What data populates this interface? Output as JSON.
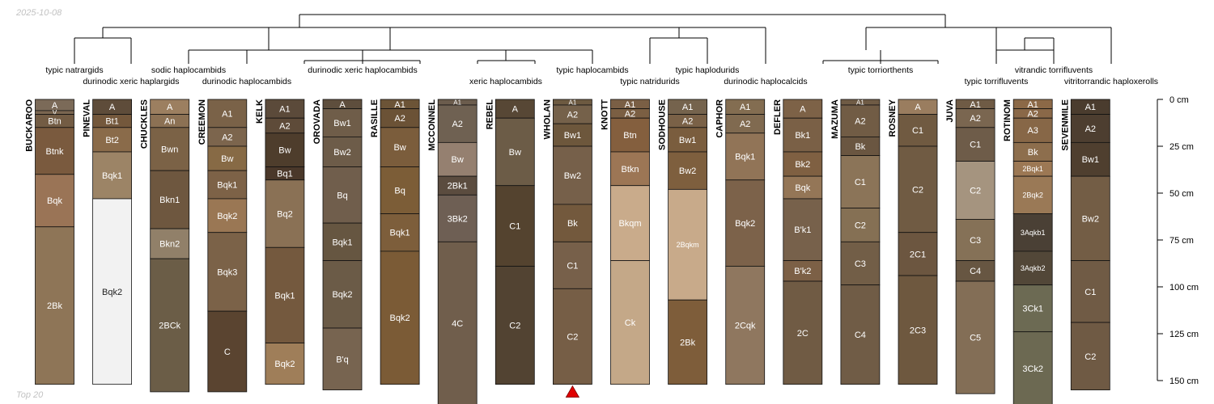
{
  "meta": {
    "date": "2025-10-08",
    "footer": "Top 20"
  },
  "depth_axis": {
    "ticks": [
      0,
      25,
      50,
      75,
      100,
      125,
      150
    ],
    "unit": "cm"
  },
  "dendrogram": {
    "groups": [
      {
        "name": "typic natrargids",
        "profiles": [
          0
        ]
      },
      {
        "name": "durinodic xeric haplargids",
        "profiles": [
          1
        ]
      },
      {
        "name": "sodic haplocambids",
        "profiles": [
          2
        ]
      },
      {
        "name": "durinodic haplocambids",
        "profiles": [
          3
        ]
      },
      {
        "name": "durinodic xeric haplocambids",
        "profiles": [
          4,
          5,
          6
        ]
      },
      {
        "name": "xeric haplocambids",
        "profiles": [
          7,
          8
        ]
      },
      {
        "name": "typic haplocambids",
        "profiles": [
          9
        ]
      },
      {
        "name": "typic natridurids",
        "profiles": [
          10
        ]
      },
      {
        "name": "typic haplodurids",
        "profiles": [
          11
        ]
      },
      {
        "name": "durinodic haplocalcids",
        "profiles": [
          12
        ]
      },
      {
        "name": "typic torriorthents",
        "profiles": [
          13,
          14,
          15
        ]
      },
      {
        "name": "typic torrifluvents",
        "profiles": [
          16
        ]
      },
      {
        "name": "vitrandic torrifluvents",
        "profiles": [
          17
        ]
      },
      {
        "name": "vitritorrandic haploxerolls",
        "profiles": [
          18
        ]
      }
    ]
  },
  "profiles": [
    {
      "name": "BUCKAROO",
      "horizons": [
        {
          "name": "A",
          "top": 0,
          "bottom": 6,
          "color": "#7b6a58"
        },
        {
          "name": "V",
          "top": 6,
          "bottom": 8,
          "color": "#7a6650"
        },
        {
          "name": "Btn",
          "top": 8,
          "bottom": 15,
          "color": "#735c44"
        },
        {
          "name": "Btnk",
          "top": 15,
          "bottom": 40,
          "color": "#7a5a3e"
        },
        {
          "name": "Bqk",
          "top": 40,
          "bottom": 68,
          "color": "#9a7456"
        },
        {
          "name": "2Bk",
          "top": 68,
          "bottom": 152,
          "color": "#8e7557"
        }
      ]
    },
    {
      "name": "PINEVAL",
      "horizons": [
        {
          "name": "A",
          "top": 0,
          "bottom": 8,
          "color": "#5e4c3a"
        },
        {
          "name": "Bt1",
          "top": 8,
          "bottom": 15,
          "color": "#74583c"
        },
        {
          "name": "Bt2",
          "top": 15,
          "bottom": 28,
          "color": "#8a6b4a"
        },
        {
          "name": "Bqk1",
          "top": 28,
          "bottom": 53,
          "color": "#9c8466"
        },
        {
          "name": "Bqk2",
          "top": 53,
          "bottom": 152,
          "color": "#f2f2f2"
        }
      ]
    },
    {
      "name": "CHUCKLES",
      "horizons": [
        {
          "name": "A",
          "top": 0,
          "bottom": 8,
          "color": "#9c7f60"
        },
        {
          "name": "An",
          "top": 8,
          "bottom": 15,
          "color": "#8c7154"
        },
        {
          "name": "Bwn",
          "top": 15,
          "bottom": 38,
          "color": "#7b6246"
        },
        {
          "name": "Bkn1",
          "top": 38,
          "bottom": 69,
          "color": "#6e573f"
        },
        {
          "name": "Bkn2",
          "top": 69,
          "bottom": 85,
          "color": "#918069"
        },
        {
          "name": "2BCk",
          "top": 85,
          "bottom": 156,
          "color": "#6b5d47"
        }
      ]
    },
    {
      "name": "CREEMON",
      "horizons": [
        {
          "name": "A1",
          "top": 0,
          "bottom": 15,
          "color": "#7a6248"
        },
        {
          "name": "A2",
          "top": 15,
          "bottom": 25,
          "color": "#7c654d"
        },
        {
          "name": "Bw",
          "top": 25,
          "bottom": 38,
          "color": "#876a45"
        },
        {
          "name": "Bqk1",
          "top": 38,
          "bottom": 53,
          "color": "#7d6247"
        },
        {
          "name": "Bqk2",
          "top": 53,
          "bottom": 71,
          "color": "#9a7754"
        },
        {
          "name": "Bqk3",
          "top": 71,
          "bottom": 113,
          "color": "#7b6248"
        },
        {
          "name": "C",
          "top": 113,
          "bottom": 156,
          "color": "#5a4430"
        }
      ]
    },
    {
      "name": "KELK",
      "horizons": [
        {
          "name": "A1",
          "top": 0,
          "bottom": 10,
          "color": "#5b4a3a"
        },
        {
          "name": "A2",
          "top": 10,
          "bottom": 18,
          "color": "#5e4b39"
        },
        {
          "name": "Bw",
          "top": 18,
          "bottom": 36,
          "color": "#4e3d2c"
        },
        {
          "name": "Bq1",
          "top": 36,
          "bottom": 43,
          "color": "#4a382a"
        },
        {
          "name": "Bq2",
          "top": 43,
          "bottom": 79,
          "color": "#8a7155"
        },
        {
          "name": "Bqk1",
          "top": 79,
          "bottom": 130,
          "color": "#74593e"
        },
        {
          "name": "Bqk2",
          "top": 130,
          "bottom": 152,
          "color": "#9f7e59"
        }
      ]
    },
    {
      "name": "OROVADA",
      "horizons": [
        {
          "name": "A",
          "top": 0,
          "bottom": 5,
          "color": "#5e4e3d"
        },
        {
          "name": "Bw1",
          "top": 5,
          "bottom": 20,
          "color": "#6f5d49"
        },
        {
          "name": "Bw2",
          "top": 20,
          "bottom": 36,
          "color": "#6d5c49"
        },
        {
          "name": "Bq",
          "top": 36,
          "bottom": 66,
          "color": "#705e4c"
        },
        {
          "name": "Bqk1",
          "top": 66,
          "bottom": 86,
          "color": "#665641"
        },
        {
          "name": "Bqk2",
          "top": 86,
          "bottom": 122,
          "color": "#6b5b47"
        },
        {
          "name": "B'q",
          "top": 122,
          "bottom": 155,
          "color": "#776450"
        }
      ]
    },
    {
      "name": "RASILLE",
      "horizons": [
        {
          "name": "A1",
          "top": 0,
          "bottom": 5,
          "color": "#6c5437"
        },
        {
          "name": "A2",
          "top": 5,
          "bottom": 15,
          "color": "#6b5236"
        },
        {
          "name": "Bw",
          "top": 15,
          "bottom": 36,
          "color": "#7b5d3c"
        },
        {
          "name": "Bq",
          "top": 36,
          "bottom": 61,
          "color": "#7c5d37"
        },
        {
          "name": "Bqk1",
          "top": 61,
          "bottom": 81,
          "color": "#7d5e3b"
        },
        {
          "name": "Bqk2",
          "top": 81,
          "bottom": 152,
          "color": "#7b5b36"
        }
      ]
    },
    {
      "name": "MCCONNEL",
      "horizons": [
        {
          "name": "A1",
          "top": 0,
          "bottom": 3,
          "color": "#6b5c4d"
        },
        {
          "name": "A2",
          "top": 3,
          "bottom": 23,
          "color": "#6f6152"
        },
        {
          "name": "Bw",
          "top": 23,
          "bottom": 41,
          "color": "#958070"
        },
        {
          "name": "2Bk1",
          "top": 41,
          "bottom": 51,
          "color": "#5b4c3f"
        },
        {
          "name": "3Bk2",
          "top": 51,
          "bottom": 76,
          "color": "#6e5f54"
        },
        {
          "name": "4C",
          "top": 76,
          "bottom": 163,
          "color": "#705e4c"
        }
      ]
    },
    {
      "name": "REBEL",
      "horizons": [
        {
          "name": "A",
          "top": 0,
          "bottom": 10,
          "color": "#574735"
        },
        {
          "name": "Bw",
          "top": 10,
          "bottom": 46,
          "color": "#6c5c47"
        },
        {
          "name": "C1",
          "top": 46,
          "bottom": 89,
          "color": "#54432f"
        },
        {
          "name": "C2",
          "top": 89,
          "bottom": 152,
          "color": "#524332"
        }
      ]
    },
    {
      "name": "WHOLAN",
      "horizons": [
        {
          "name": "A1",
          "top": 0,
          "bottom": 3,
          "color": "#6d5a41"
        },
        {
          "name": "A2",
          "top": 3,
          "bottom": 13,
          "color": "#75614a"
        },
        {
          "name": "Bw1",
          "top": 13,
          "bottom": 25,
          "color": "#6d573c"
        },
        {
          "name": "Bw2",
          "top": 25,
          "bottom": 56,
          "color": "#76604a"
        },
        {
          "name": "Bk",
          "top": 56,
          "bottom": 76,
          "color": "#73593d"
        },
        {
          "name": "C1",
          "top": 76,
          "bottom": 101,
          "color": "#77604a"
        },
        {
          "name": "C2",
          "top": 101,
          "bottom": 152,
          "color": "#765e46"
        }
      ],
      "marker": "triangle"
    },
    {
      "name": "KNOTT",
      "horizons": [
        {
          "name": "A1",
          "top": 0,
          "bottom": 5,
          "color": "#7a5f45"
        },
        {
          "name": "A2",
          "top": 5,
          "bottom": 10,
          "color": "#7b5f43"
        },
        {
          "name": "Btn",
          "top": 10,
          "bottom": 28,
          "color": "#845f3e"
        },
        {
          "name": "Btkn",
          "top": 28,
          "bottom": 46,
          "color": "#9c7655"
        },
        {
          "name": "Bkqm",
          "top": 46,
          "bottom": 86,
          "color": "#c9ab8b"
        },
        {
          "name": "Ck",
          "top": 86,
          "bottom": 152,
          "color": "#c4a888"
        }
      ]
    },
    {
      "name": "SODHOUSE",
      "horizons": [
        {
          "name": "A1",
          "top": 0,
          "bottom": 8,
          "color": "#75634d"
        },
        {
          "name": "A2",
          "top": 8,
          "bottom": 15,
          "color": "#7a6147"
        },
        {
          "name": "Bw1",
          "top": 15,
          "bottom": 28,
          "color": "#7a5d3e"
        },
        {
          "name": "Bw2",
          "top": 28,
          "bottom": 48,
          "color": "#7e5f3e"
        },
        {
          "name": "2Bqkm",
          "top": 48,
          "bottom": 107,
          "color": "#c8aa8a"
        },
        {
          "name": "2Bk",
          "top": 107,
          "bottom": 152,
          "color": "#7e5d3a"
        }
      ]
    },
    {
      "name": "CAPHOR",
      "horizons": [
        {
          "name": "A1",
          "top": 0,
          "bottom": 8,
          "color": "#836d51"
        },
        {
          "name": "A2",
          "top": 8,
          "bottom": 18,
          "color": "#806a50"
        },
        {
          "name": "Bqk1",
          "top": 18,
          "bottom": 43,
          "color": "#917457"
        },
        {
          "name": "Bqk2",
          "top": 43,
          "bottom": 89,
          "color": "#7c624a"
        },
        {
          "name": "2Cqk",
          "top": 89,
          "bottom": 152,
          "color": "#8f775f"
        }
      ]
    },
    {
      "name": "DEFLER",
      "horizons": [
        {
          "name": "A",
          "top": 0,
          "bottom": 10,
          "color": "#7d6247"
        },
        {
          "name": "Bk1",
          "top": 10,
          "bottom": 28,
          "color": "#7a6046"
        },
        {
          "name": "Bk2",
          "top": 28,
          "bottom": 41,
          "color": "#7f6042"
        },
        {
          "name": "Bqk",
          "top": 41,
          "bottom": 53,
          "color": "#947657"
        },
        {
          "name": "B'k1",
          "top": 53,
          "bottom": 86,
          "color": "#77614b"
        },
        {
          "name": "B'k2",
          "top": 86,
          "bottom": 97,
          "color": "#7c6046"
        },
        {
          "name": "2C",
          "top": 97,
          "bottom": 152,
          "color": "#705b44"
        }
      ]
    },
    {
      "name": "MAZUMA",
      "horizons": [
        {
          "name": "A1",
          "top": 0,
          "bottom": 3,
          "color": "#6f5b45"
        },
        {
          "name": "A2",
          "top": 3,
          "bottom": 20,
          "color": "#715c45"
        },
        {
          "name": "Bk",
          "top": 20,
          "bottom": 30,
          "color": "#6a5641"
        },
        {
          "name": "C1",
          "top": 30,
          "bottom": 58,
          "color": "#8b7458"
        },
        {
          "name": "C2",
          "top": 58,
          "bottom": 76,
          "color": "#857054"
        },
        {
          "name": "C3",
          "top": 76,
          "bottom": 99,
          "color": "#725e47"
        },
        {
          "name": "C4",
          "top": 99,
          "bottom": 152,
          "color": "#705c46"
        }
      ]
    },
    {
      "name": "ROSNEY",
      "horizons": [
        {
          "name": "A",
          "top": 0,
          "bottom": 8,
          "color": "#9a7d5f"
        },
        {
          "name": "C1",
          "top": 8,
          "bottom": 25,
          "color": "#705a41"
        },
        {
          "name": "C2",
          "top": 25,
          "bottom": 71,
          "color": "#705b43"
        },
        {
          "name": "2C1",
          "top": 71,
          "bottom": 94,
          "color": "#6c5640"
        },
        {
          "name": "2C3",
          "top": 94,
          "bottom": 152,
          "color": "#6e583f"
        }
      ]
    },
    {
      "name": "JUVA",
      "horizons": [
        {
          "name": "A1",
          "top": 0,
          "bottom": 5,
          "color": "#6f5b45"
        },
        {
          "name": "A2",
          "top": 5,
          "bottom": 15,
          "color": "#7a6650"
        },
        {
          "name": "C1",
          "top": 15,
          "bottom": 33,
          "color": "#6e5c49"
        },
        {
          "name": "C2",
          "top": 33,
          "bottom": 64,
          "color": "#a5947f"
        },
        {
          "name": "C3",
          "top": 64,
          "bottom": 86,
          "color": "#857157"
        },
        {
          "name": "C4",
          "top": 86,
          "bottom": 97,
          "color": "#675642"
        },
        {
          "name": "C5",
          "top": 97,
          "bottom": 157,
          "color": "#836e56"
        }
      ]
    },
    {
      "name": "ROTINOM",
      "horizons": [
        {
          "name": "A1",
          "top": 0,
          "bottom": 5,
          "color": "#8c6947"
        },
        {
          "name": "A2",
          "top": 5,
          "bottom": 10,
          "color": "#8a6848"
        },
        {
          "name": "A3",
          "top": 10,
          "bottom": 23,
          "color": "#876747"
        },
        {
          "name": "Bk",
          "top": 23,
          "bottom": 33,
          "color": "#8d6e4d"
        },
        {
          "name": "2Bqk1",
          "top": 33,
          "bottom": 41,
          "color": "#9c7854"
        },
        {
          "name": "2Bqk2",
          "top": 41,
          "bottom": 61,
          "color": "#9a7956"
        },
        {
          "name": "3Aqkb1",
          "top": 61,
          "bottom": 81,
          "color": "#4a4035"
        },
        {
          "name": "3Aqkb2",
          "top": 81,
          "bottom": 99,
          "color": "#524738"
        },
        {
          "name": "3Ck1",
          "top": 99,
          "bottom": 124,
          "color": "#6c6a53"
        },
        {
          "name": "3Ck2",
          "top": 124,
          "bottom": 163,
          "color": "#6c6952"
        }
      ]
    },
    {
      "name": "SEVENMILE",
      "horizons": [
        {
          "name": "A1",
          "top": 0,
          "bottom": 8,
          "color": "#4a3c2e"
        },
        {
          "name": "A2",
          "top": 8,
          "bottom": 23,
          "color": "#4d3e30"
        },
        {
          "name": "Bw1",
          "top": 23,
          "bottom": 41,
          "color": "#4f3f2f"
        },
        {
          "name": "Bw2",
          "top": 41,
          "bottom": 86,
          "color": "#735d45"
        },
        {
          "name": "C1",
          "top": 86,
          "bottom": 119,
          "color": "#705b45"
        },
        {
          "name": "C2",
          "top": 119,
          "bottom": 155,
          "color": "#6f5a44"
        }
      ]
    }
  ]
}
